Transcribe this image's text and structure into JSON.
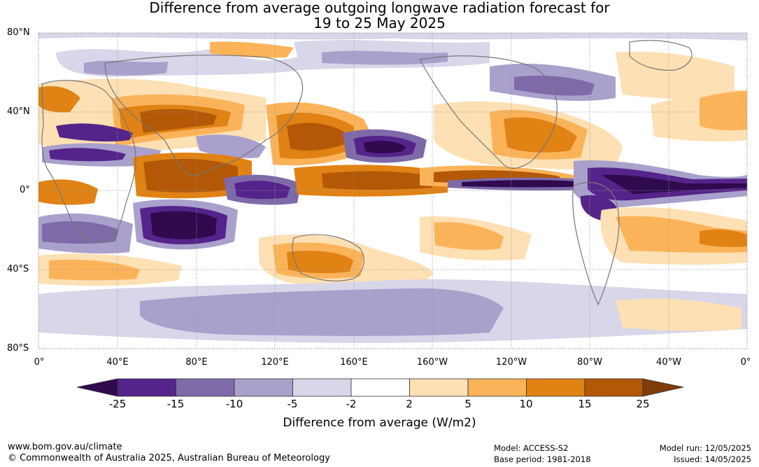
{
  "title": {
    "line1": "Difference from average outgoing longwave radiation forecast for",
    "line2": "19 to 25 May 2025"
  },
  "map": {
    "lat_labels": [
      "80°N",
      "40°N",
      "0°",
      "40°S",
      "80°S"
    ],
    "lon_labels": [
      "0°",
      "40°E",
      "80°E",
      "120°E",
      "160°E",
      "160°W",
      "120°W",
      "80°W",
      "40°W",
      "0°"
    ]
  },
  "colorbar": {
    "title": "Difference from average (W/m2)",
    "ticks": [
      "-25",
      "-15",
      "-10",
      "-5",
      "-2",
      "2",
      "5",
      "10",
      "15",
      "25"
    ],
    "colors": [
      "#2f0a4e",
      "#54248a",
      "#7e6aa9",
      "#a9a0cc",
      "#d8d6e9",
      "#ffffff",
      "#fde0b4",
      "#fbb35a",
      "#e08214",
      "#b35806",
      "#7f3b08"
    ]
  },
  "footer": {
    "website": "www.bom.gov.au/climate",
    "copyright": "© Commonwealth of Australia 2025, Australian Bureau of Meteorology",
    "model": "Model: ACCESS-S2",
    "base_period": "Base period: 1981-2018",
    "model_run": "Model run: 12/05/2025",
    "issued": "Issued: 14/05/2025"
  }
}
